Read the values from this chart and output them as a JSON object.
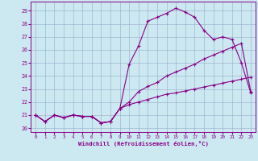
{
  "xlabel": "Windchill (Refroidissement éolien,°C)",
  "bg_color": "#cce8f0",
  "grid_color": "#99aacc",
  "line_color": "#880088",
  "x_ticks": [
    0,
    1,
    2,
    3,
    4,
    5,
    6,
    7,
    8,
    9,
    10,
    11,
    12,
    13,
    14,
    15,
    16,
    17,
    18,
    19,
    20,
    21,
    22,
    23
  ],
  "y_ticks": [
    20,
    21,
    22,
    23,
    24,
    25,
    26,
    27,
    28,
    29
  ],
  "xlim": [
    -0.5,
    23.5
  ],
  "ylim": [
    19.7,
    29.7
  ],
  "line1_x": [
    0,
    1,
    2,
    3,
    4,
    5,
    6,
    7,
    8,
    9,
    10,
    11,
    12,
    13,
    14,
    15,
    16,
    17,
    18,
    19,
    20,
    21,
    22,
    23
  ],
  "line1_y": [
    21.0,
    20.5,
    21.0,
    20.8,
    21.0,
    20.9,
    20.9,
    20.4,
    20.5,
    21.5,
    22.0,
    22.8,
    23.2,
    23.5,
    24.0,
    24.3,
    24.6,
    24.9,
    25.3,
    25.6,
    25.9,
    26.2,
    26.5,
    22.8
  ],
  "line2_x": [
    0,
    1,
    2,
    3,
    4,
    5,
    6,
    7,
    8,
    9,
    10,
    11,
    12,
    13,
    14,
    15,
    16,
    17,
    18,
    19,
    20,
    21,
    22,
    23
  ],
  "line2_y": [
    21.0,
    20.5,
    21.0,
    20.8,
    21.0,
    20.9,
    20.9,
    20.4,
    20.5,
    21.5,
    24.9,
    26.3,
    28.2,
    28.5,
    28.8,
    29.2,
    28.9,
    28.5,
    27.5,
    26.8,
    27.0,
    26.8,
    25.0,
    22.7
  ],
  "line3_x": [
    0,
    1,
    2,
    3,
    4,
    5,
    6,
    7,
    8,
    9,
    10,
    11,
    12,
    13,
    14,
    15,
    16,
    17,
    18,
    19,
    20,
    21,
    22,
    23
  ],
  "line3_y": [
    21.0,
    20.5,
    21.0,
    20.8,
    21.0,
    20.9,
    20.9,
    20.4,
    20.5,
    21.5,
    21.8,
    22.0,
    22.2,
    22.4,
    22.6,
    22.7,
    22.85,
    23.0,
    23.15,
    23.3,
    23.45,
    23.6,
    23.75,
    23.9
  ]
}
